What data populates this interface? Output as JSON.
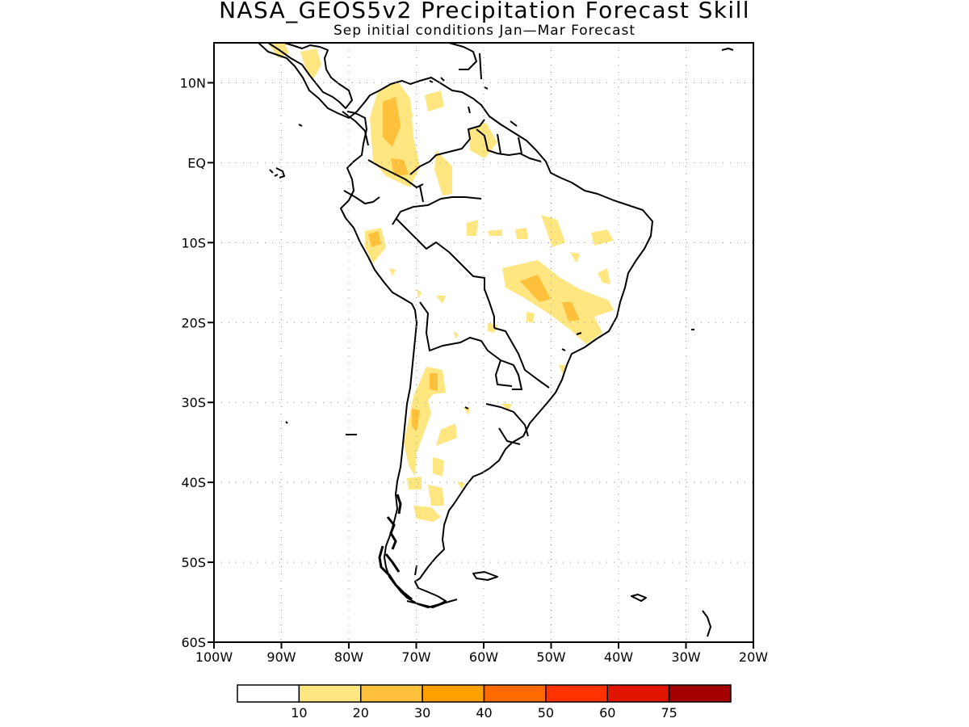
{
  "title": "NASA_GEOS5v2 Precipitation Forecast Skill",
  "subtitle": "Sep initial conditions  Jan—Mar Forecast",
  "map": {
    "lon_range": [
      -100,
      -20
    ],
    "lat_range": [
      -60,
      15
    ],
    "y_ticks": [
      {
        "lat": 10,
        "label": "10N"
      },
      {
        "lat": 0,
        "label": "EQ"
      },
      {
        "lat": -10,
        "label": "10S"
      },
      {
        "lat": -20,
        "label": "20S"
      },
      {
        "lat": -30,
        "label": "30S"
      },
      {
        "lat": -40,
        "label": "40S"
      },
      {
        "lat": -50,
        "label": "50S"
      },
      {
        "lat": -60,
        "label": "60S"
      }
    ],
    "x_ticks": [
      {
        "lon": -100,
        "label": "100W"
      },
      {
        "lon": -90,
        "label": "90W"
      },
      {
        "lon": -80,
        "label": "80W"
      },
      {
        "lon": -70,
        "label": "70W"
      },
      {
        "lon": -60,
        "label": "60W"
      },
      {
        "lon": -50,
        "label": "50W"
      },
      {
        "lon": -40,
        "label": "40W"
      },
      {
        "lon": -30,
        "label": "30W"
      },
      {
        "lon": -20,
        "label": "20W"
      }
    ],
    "grid": "dotted"
  },
  "colorbar": {
    "colors": [
      "#ffffff",
      "#ffe680",
      "#ffc03c",
      "#ffa000",
      "#ff6a00",
      "#ff3200",
      "#e11400",
      "#a50000"
    ],
    "labels": [
      "10",
      "20",
      "30",
      "40",
      "50",
      "60",
      "75"
    ]
  },
  "colors": {
    "level_10_20": "#ffe680",
    "level_20_30": "#ffc03c",
    "coastline": "#000000"
  }
}
